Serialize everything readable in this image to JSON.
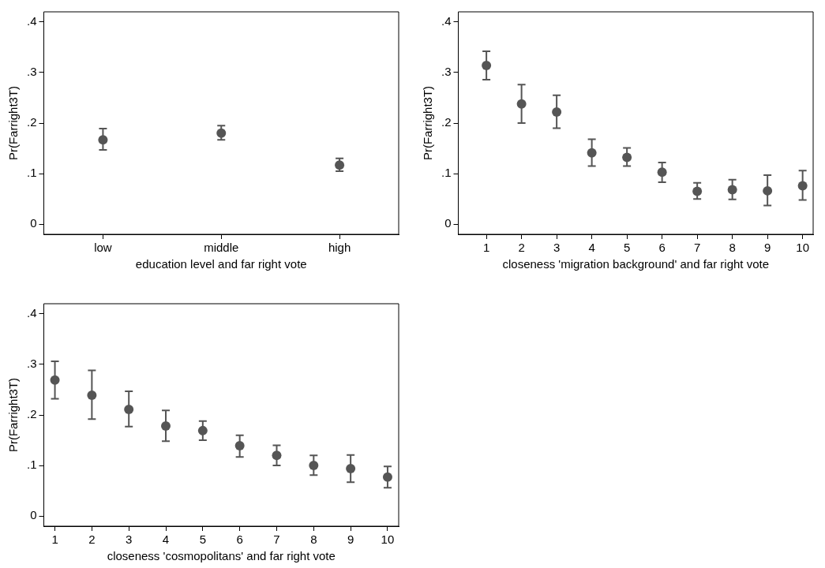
{
  "chart_data": [
    {
      "type": "scatter",
      "xlabel": "education level and far right vote",
      "ylabel": "Pr(Farright3T)",
      "categories": [
        "low",
        "middle",
        "high"
      ],
      "series": [
        {
          "color": "#555555",
          "values": [
            0.167,
            0.18,
            0.117
          ],
          "errors": [
            [
              0.147,
              0.189
            ],
            [
              0.167,
              0.195
            ],
            [
              0.105,
              0.13
            ]
          ]
        }
      ],
      "ylim": [
        -0.02,
        0.42
      ],
      "yticks": [
        {
          "value": 0,
          "label": "0"
        },
        {
          "value": 0.1,
          "label": ".1"
        },
        {
          "value": 0.2,
          "label": ".2"
        },
        {
          "value": 0.3,
          "label": ".3"
        },
        {
          "value": 0.4,
          "label": ".4"
        }
      ],
      "grid": false,
      "legend": false,
      "marker": "circle"
    },
    {
      "type": "scatter",
      "xlabel": "closeness 'migration background' and far right vote",
      "ylabel": "Pr(Farright3T)",
      "x": [
        1,
        2,
        3,
        4,
        5,
        6,
        7,
        8,
        9,
        10
      ],
      "series": [
        {
          "color": "#555555",
          "values": [
            0.314,
            0.238,
            0.222,
            0.141,
            0.132,
            0.103,
            0.065,
            0.068,
            0.066,
            0.076
          ],
          "errors": [
            [
              0.286,
              0.342
            ],
            [
              0.2,
              0.276
            ],
            [
              0.19,
              0.255
            ],
            [
              0.115,
              0.168
            ],
            [
              0.115,
              0.151
            ],
            [
              0.083,
              0.122
            ],
            [
              0.05,
              0.082
            ],
            [
              0.049,
              0.088
            ],
            [
              0.037,
              0.097
            ],
            [
              0.048,
              0.106
            ]
          ]
        }
      ],
      "xlim": [
        0.2,
        10.3
      ],
      "xticks": [
        1,
        2,
        3,
        4,
        5,
        6,
        7,
        8,
        9,
        10
      ],
      "ylim": [
        -0.02,
        0.42
      ],
      "yticks": [
        {
          "value": 0,
          "label": "0"
        },
        {
          "value": 0.1,
          "label": ".1"
        },
        {
          "value": 0.2,
          "label": ".2"
        },
        {
          "value": 0.3,
          "label": ".3"
        },
        {
          "value": 0.4,
          "label": ".4"
        }
      ],
      "grid": false,
      "legend": false,
      "marker": "circle"
    },
    {
      "type": "scatter",
      "xlabel": "closeness 'cosmopolitans' and far right vote",
      "ylabel": "Pr(Farright3T)",
      "x": [
        1,
        2,
        3,
        4,
        5,
        6,
        7,
        8,
        9,
        10
      ],
      "series": [
        {
          "color": "#555555",
          "values": [
            0.269,
            0.239,
            0.211,
            0.178,
            0.169,
            0.139,
            0.12,
            0.1,
            0.094,
            0.077
          ],
          "errors": [
            [
              0.232,
              0.306
            ],
            [
              0.192,
              0.288
            ],
            [
              0.177,
              0.247
            ],
            [
              0.148,
              0.209
            ],
            [
              0.15,
              0.188
            ],
            [
              0.117,
              0.16
            ],
            [
              0.1,
              0.14
            ],
            [
              0.081,
              0.12
            ],
            [
              0.067,
              0.121
            ],
            [
              0.056,
              0.098
            ]
          ]
        }
      ],
      "xlim": [
        0.7,
        10.3
      ],
      "xticks": [
        1,
        2,
        3,
        4,
        5,
        6,
        7,
        8,
        9,
        10
      ],
      "ylim": [
        -0.02,
        0.42
      ],
      "yticks": [
        {
          "value": 0,
          "label": "0"
        },
        {
          "value": 0.1,
          "label": ".1"
        },
        {
          "value": 0.2,
          "label": ".2"
        },
        {
          "value": 0.3,
          "label": ".3"
        },
        {
          "value": 0.4,
          "label": ".4"
        }
      ],
      "grid": false,
      "legend": false,
      "marker": "circle"
    }
  ]
}
